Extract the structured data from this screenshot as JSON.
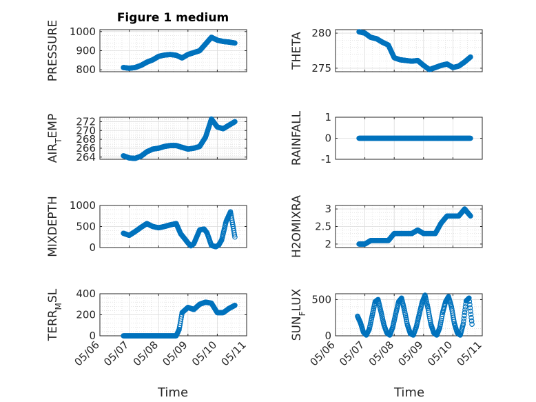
{
  "figure_title": "Figure 1 medium",
  "colors": {
    "marker": "#0072BD",
    "axis": "#262626",
    "grid": "#d6d6d6"
  },
  "x_tick_labels": [
    "05/06",
    "05/07",
    "05/08",
    "05/09",
    "05/10",
    "05/11"
  ],
  "x_label": "Time",
  "chart_data": [
    {
      "type": "scatter",
      "title": "Figure 1 medium",
      "ylabel": "PRESSURE",
      "ylim": [
        790,
        1010
      ],
      "yticks": [
        800,
        900,
        1000
      ],
      "yticklabels": [
        "800",
        "900",
        "1000"
      ],
      "xlim": [
        0,
        5
      ],
      "grid": true,
      "minor_grid": true,
      "x": [
        0.8,
        1.0,
        1.2,
        1.4,
        1.6,
        1.8,
        2.0,
        2.2,
        2.4,
        2.6,
        2.8,
        3.0,
        3.2,
        3.4,
        3.6,
        3.8,
        4.0,
        4.2,
        4.4,
        4.6
      ],
      "y": [
        812,
        808,
        812,
        823,
        840,
        852,
        870,
        877,
        880,
        876,
        862,
        880,
        890,
        900,
        935,
        970,
        955,
        948,
        945,
        940
      ]
    },
    {
      "type": "scatter",
      "ylabel": "THETA",
      "ylim": [
        274.5,
        280.5
      ],
      "yticks": [
        275,
        280
      ],
      "yticklabels": [
        "275",
        "280"
      ],
      "xlim": [
        0,
        5
      ],
      "grid": true,
      "minor_grid": true,
      "x": [
        0.8,
        1.0,
        1.2,
        1.4,
        1.6,
        1.8,
        2.0,
        2.2,
        2.4,
        2.6,
        2.8,
        3.0,
        3.2,
        3.4,
        3.6,
        3.8,
        4.0,
        4.2,
        4.4,
        4.6
      ],
      "y": [
        280.2,
        280.0,
        279.4,
        279.2,
        278.7,
        278.3,
        276.5,
        276.2,
        276.1,
        276.0,
        276.1,
        275.4,
        274.8,
        275.1,
        275.4,
        275.6,
        275.1,
        275.3,
        275.9,
        276.6
      ]
    },
    {
      "type": "scatter",
      "ylabel": "AIR_TEMP",
      "ylim": [
        263.5,
        273
      ],
      "yticks": [
        264,
        266,
        268,
        270,
        272
      ],
      "yticklabels": [
        "264",
        "266",
        "268",
        "270",
        "272"
      ],
      "xlim": [
        0,
        5
      ],
      "grid": true,
      "minor_grid": true,
      "x": [
        0.8,
        1.0,
        1.2,
        1.4,
        1.6,
        1.8,
        2.0,
        2.2,
        2.4,
        2.6,
        2.8,
        3.0,
        3.2,
        3.4,
        3.6,
        3.8,
        4.0,
        4.2,
        4.4,
        4.6
      ],
      "y": [
        264.3,
        263.8,
        263.7,
        264.2,
        265.2,
        265.8,
        266.0,
        266.4,
        266.6,
        266.6,
        266.2,
        265.8,
        266.0,
        266.4,
        268.5,
        272.6,
        270.8,
        270.4,
        271.2,
        272.0
      ]
    },
    {
      "type": "scatter",
      "ylabel": "RAINFALL",
      "ylim": [
        -1,
        1
      ],
      "yticks": [
        -1,
        0,
        1
      ],
      "yticklabels": [
        "-1",
        "0",
        "1"
      ],
      "xlim": [
        0,
        5
      ],
      "grid": true,
      "minor_grid": false,
      "x": [
        0.8,
        1.0,
        1.2,
        1.4,
        1.6,
        1.8,
        2.0,
        2.2,
        2.4,
        2.6,
        2.8,
        3.0,
        3.2,
        3.4,
        3.6,
        3.8,
        4.0,
        4.2,
        4.4,
        4.6
      ],
      "y": [
        0,
        0,
        0,
        0,
        0,
        0,
        0,
        0,
        0,
        0,
        0,
        0,
        0,
        0,
        0,
        0,
        0,
        0,
        0,
        0
      ]
    },
    {
      "type": "scatter",
      "ylabel": "MIXDEPTH",
      "ylim": [
        0,
        1000
      ],
      "yticks": [
        0,
        500,
        1000
      ],
      "yticklabels": [
        "0",
        "500",
        "1000"
      ],
      "xlim": [
        0,
        5
      ],
      "grid": true,
      "minor_grid": true,
      "x": [
        0.8,
        1.0,
        1.2,
        1.4,
        1.6,
        1.8,
        2.0,
        2.2,
        2.4,
        2.6,
        2.75,
        2.9,
        3.0,
        3.1,
        3.2,
        3.4,
        3.55,
        3.65,
        3.8,
        3.95,
        4.05,
        4.15,
        4.3,
        4.45,
        4.6
      ],
      "y": [
        340,
        290,
        380,
        480,
        570,
        500,
        470,
        500,
        540,
        570,
        330,
        200,
        110,
        40,
        90,
        420,
        440,
        350,
        50,
        20,
        60,
        180,
        620,
        850,
        250
      ]
    },
    {
      "type": "scatter",
      "ylabel": "H2OMIXRA",
      "ylim": [
        1.9,
        3.1
      ],
      "yticks": [
        2,
        2.5,
        3
      ],
      "yticklabels": [
        "2",
        "2.5",
        "3"
      ],
      "xlim": [
        0,
        5
      ],
      "grid": true,
      "minor_grid": true,
      "x": [
        0.8,
        1.0,
        1.2,
        1.4,
        1.6,
        1.8,
        2.0,
        2.2,
        2.4,
        2.6,
        2.8,
        3.0,
        3.2,
        3.4,
        3.6,
        3.8,
        4.0,
        4.2,
        4.4,
        4.6
      ],
      "y": [
        2.0,
        2.0,
        2.1,
        2.1,
        2.1,
        2.1,
        2.3,
        2.3,
        2.3,
        2.3,
        2.4,
        2.3,
        2.3,
        2.3,
        2.6,
        2.8,
        2.8,
        2.8,
        3.0,
        2.8
      ]
    },
    {
      "type": "scatter",
      "ylabel": "TERR_MSL",
      "ylim": [
        0,
        400
      ],
      "yticks": [
        0,
        200,
        400
      ],
      "yticklabels": [
        "0",
        "200",
        "400"
      ],
      "xlim": [
        0,
        5
      ],
      "grid": true,
      "minor_grid": true,
      "x": [
        0.8,
        1.0,
        1.2,
        1.4,
        1.6,
        1.8,
        2.0,
        2.2,
        2.4,
        2.6,
        2.7,
        2.8,
        3.0,
        3.2,
        3.4,
        3.6,
        3.8,
        4.0,
        4.2,
        4.4,
        4.6
      ],
      "y": [
        0,
        0,
        0,
        0,
        0,
        0,
        0,
        0,
        0,
        0,
        60,
        220,
        270,
        250,
        300,
        320,
        310,
        220,
        220,
        260,
        290
      ]
    },
    {
      "type": "scatter",
      "ylabel": "SUN_FLUX",
      "ylim": [
        0,
        580
      ],
      "yticks": [
        0,
        500
      ],
      "yticklabels": [
        "0",
        "500"
      ],
      "xlim": [
        0,
        5
      ],
      "grid": true,
      "minor_grid": true,
      "x": [
        0.75,
        0.85,
        0.95,
        1.05,
        1.15,
        1.25,
        1.35,
        1.45,
        1.55,
        1.65,
        1.75,
        1.85,
        1.95,
        2.05,
        2.15,
        2.25,
        2.35,
        2.45,
        2.55,
        2.65,
        2.75,
        2.85,
        2.95,
        3.05,
        3.15,
        3.25,
        3.35,
        3.45,
        3.55,
        3.65,
        3.75,
        3.85,
        3.95,
        4.05,
        4.15,
        4.25,
        4.35,
        4.45,
        4.55,
        4.65
      ],
      "y": [
        270,
        180,
        50,
        10,
        90,
        280,
        470,
        500,
        330,
        150,
        40,
        10,
        120,
        300,
        470,
        520,
        350,
        150,
        30,
        10,
        120,
        290,
        460,
        560,
        380,
        160,
        40,
        10,
        110,
        320,
        470,
        540,
        400,
        170,
        40,
        10,
        160,
        480,
        520,
        160
      ]
    }
  ]
}
